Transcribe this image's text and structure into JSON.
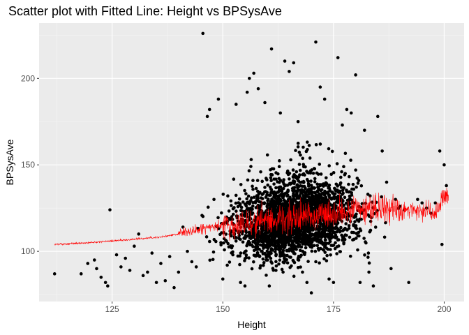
{
  "chart_data": {
    "type": "scatter",
    "title": "Scatter plot with Fitted Line: Height vs BPSysAve",
    "xlabel": "Height",
    "ylabel": "BPSysAve",
    "xlim": [
      108.5,
      204.5
    ],
    "ylim": [
      71,
      232
    ],
    "x_ticks": [
      125,
      150,
      175,
      200
    ],
    "y_ticks": [
      100,
      150,
      200
    ],
    "x_tick_labels": [
      "125",
      "150",
      "175",
      "200"
    ],
    "y_tick_labels": [
      "100",
      "150",
      "200"
    ],
    "grid": true,
    "legend": "none",
    "colors": {
      "panel": "#ebebeb",
      "grid_major": "#ffffff",
      "grid_minor": "#f5f5f5",
      "points": "#000000",
      "fit_line": "#ff0000",
      "tick_text": "#4d4d4d"
    },
    "series": [
      {
        "type": "scatter",
        "summary_points": [
          [
            112,
            87
          ],
          [
            118,
            87
          ],
          [
            119.5,
            93
          ],
          [
            121,
            95
          ],
          [
            121.5,
            90
          ],
          [
            122.5,
            85
          ],
          [
            123.5,
            82
          ],
          [
            124,
            80
          ],
          [
            124.5,
            124
          ],
          [
            126,
            98
          ],
          [
            127,
            91
          ],
          [
            128,
            96
          ],
          [
            129,
            89
          ],
          [
            130,
            103
          ],
          [
            131,
            110
          ],
          [
            132,
            86
          ],
          [
            133,
            88
          ],
          [
            134,
            99
          ],
          [
            135,
            82
          ],
          [
            136,
            93
          ],
          [
            137,
            83
          ],
          [
            138,
            97
          ],
          [
            139,
            79
          ],
          [
            140,
            88
          ],
          [
            141,
            114
          ],
          [
            142,
            100
          ],
          [
            143,
            94
          ],
          [
            144,
            91
          ],
          [
            145.5,
            226
          ],
          [
            146.5,
            178
          ],
          [
            147,
            182
          ],
          [
            148,
            130
          ],
          [
            149,
            188
          ],
          [
            150,
            84
          ],
          [
            151,
            92
          ],
          [
            152,
            120
          ],
          [
            153,
            185
          ],
          [
            154,
            82
          ],
          [
            155,
            80
          ],
          [
            155.5,
            192
          ],
          [
            156,
            200
          ],
          [
            157,
            203
          ],
          [
            158,
            194
          ],
          [
            159.5,
            186
          ],
          [
            160.5,
            80
          ],
          [
            161,
            217
          ],
          [
            162,
            89
          ],
          [
            163,
            180
          ],
          [
            164,
            210
          ],
          [
            165,
            204
          ],
          [
            166,
            209
          ],
          [
            167,
            175
          ],
          [
            168,
            88
          ],
          [
            169,
            82
          ],
          [
            170,
            76
          ],
          [
            171,
            221
          ],
          [
            172,
            195
          ],
          [
            173,
            188
          ],
          [
            174,
            84
          ],
          [
            175,
            82
          ],
          [
            176,
            212
          ],
          [
            177,
            173
          ],
          [
            178,
            182
          ],
          [
            179,
            180
          ],
          [
            180,
            202
          ],
          [
            181,
            82
          ],
          [
            182,
            170
          ],
          [
            183,
            88
          ],
          [
            184,
            80
          ],
          [
            185,
            178
          ],
          [
            186,
            158
          ],
          [
            187,
            140
          ],
          [
            188,
            90
          ],
          [
            189,
            130
          ],
          [
            190,
            126
          ],
          [
            191,
            124
          ],
          [
            192,
            82
          ],
          [
            194,
            130
          ],
          [
            195,
            128
          ],
          [
            196,
            125
          ],
          [
            197,
            122
          ],
          [
            198,
            128
          ],
          [
            199,
            158
          ],
          [
            199.5,
            104
          ],
          [
            200.5,
            138
          ],
          [
            200,
            150
          ]
        ]
      },
      {
        "type": "line",
        "summary_line": [
          [
            112,
            104
          ],
          [
            120,
            105
          ],
          [
            125,
            106
          ],
          [
            130,
            107
          ],
          [
            135,
            108
          ],
          [
            140,
            110
          ],
          [
            145,
            113
          ],
          [
            150,
            115
          ],
          [
            155,
            116
          ],
          [
            160,
            118
          ],
          [
            165,
            119
          ],
          [
            170,
            121
          ],
          [
            175,
            122
          ],
          [
            180,
            124
          ],
          [
            185,
            125
          ],
          [
            190,
            124
          ],
          [
            195,
            123
          ],
          [
            198,
            122
          ],
          [
            200,
            132
          ],
          [
            201,
            134
          ]
        ]
      }
    ]
  }
}
